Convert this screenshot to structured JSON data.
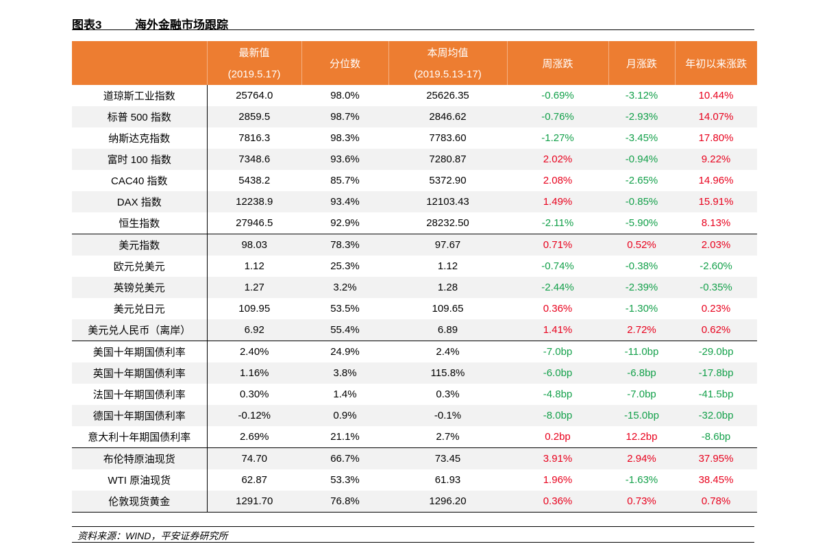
{
  "header": {
    "label": "图表3",
    "title": "海外金融市场跟踪"
  },
  "table": {
    "columns": [
      [
        ""
      ],
      [
        "最新值",
        "(2019.5.17)"
      ],
      [
        "分位数"
      ],
      [
        "本周均值",
        "(2019.5.13-17)"
      ],
      [
        "周涨跌"
      ],
      [
        "月涨跌"
      ],
      [
        "年初以来涨跌"
      ]
    ],
    "colored_from": 4,
    "up_color": "#e8001c",
    "down_color": "#13a04a",
    "header_color": "#ed7d31",
    "groups": [
      [
        [
          "道琼斯工业指数",
          "25764.0",
          "98.0%",
          "25626.35",
          "-0.69%",
          "-3.12%",
          "10.44%"
        ],
        [
          "标普 500 指数",
          "2859.5",
          "98.7%",
          "2846.62",
          "-0.76%",
          "-2.93%",
          "14.07%"
        ],
        [
          "纳斯达克指数",
          "7816.3",
          "98.3%",
          "7783.60",
          "-1.27%",
          "-3.45%",
          "17.80%"
        ],
        [
          "富时 100 指数",
          "7348.6",
          "93.6%",
          "7280.87",
          "2.02%",
          "-0.94%",
          "9.22%"
        ],
        [
          "CAC40 指数",
          "5438.2",
          "85.7%",
          "5372.90",
          "2.08%",
          "-2.65%",
          "14.96%"
        ],
        [
          "DAX 指数",
          "12238.9",
          "93.4%",
          "12103.43",
          "1.49%",
          "-0.85%",
          "15.91%"
        ],
        [
          "恒生指数",
          "27946.5",
          "92.9%",
          "28232.50",
          "-2.11%",
          "-5.90%",
          "8.13%"
        ]
      ],
      [
        [
          "美元指数",
          "98.03",
          "78.3%",
          "97.67",
          "0.71%",
          "0.52%",
          "2.03%"
        ],
        [
          "欧元兑美元",
          "1.12",
          "25.3%",
          "1.12",
          "-0.74%",
          "-0.38%",
          "-2.60%"
        ],
        [
          "英镑兑美元",
          "1.27",
          "3.2%",
          "1.28",
          "-2.44%",
          "-2.39%",
          "-0.35%"
        ],
        [
          "美元兑日元",
          "109.95",
          "53.5%",
          "109.65",
          "0.36%",
          "-1.30%",
          "0.23%"
        ],
        [
          "美元兑人民币（离岸）",
          "6.92",
          "55.4%",
          "6.89",
          "1.41%",
          "2.72%",
          "0.62%"
        ]
      ],
      [
        [
          "美国十年期国债利率",
          "2.40%",
          "24.9%",
          "2.4%",
          "-7.0bp",
          "-11.0bp",
          "-29.0bp"
        ],
        [
          "英国十年期国债利率",
          "1.16%",
          "3.8%",
          "115.8%",
          "-6.0bp",
          "-6.8bp",
          "-17.8bp"
        ],
        [
          "法国十年期国债利率",
          "0.30%",
          "1.4%",
          "0.3%",
          "-4.8bp",
          "-7.0bp",
          "-41.5bp"
        ],
        [
          "德国十年期国债利率",
          "-0.12%",
          "0.9%",
          "-0.1%",
          "-8.0bp",
          "-15.0bp",
          "-32.0bp"
        ],
        [
          "意大利十年期国债利率",
          "2.69%",
          "21.1%",
          "2.7%",
          "0.2bp",
          "12.2bp",
          "-8.6bp"
        ]
      ],
      [
        [
          "布伦特原油现货",
          "74.70",
          "66.7%",
          "73.45",
          "3.91%",
          "2.94%",
          "37.95%"
        ],
        [
          "WTI 原油现货",
          "62.87",
          "53.3%",
          "61.93",
          "1.96%",
          "-1.63%",
          "38.45%"
        ],
        [
          "伦敦现货黄金",
          "1291.70",
          "76.8%",
          "1296.20",
          "0.36%",
          "0.73%",
          "0.78%"
        ]
      ]
    ]
  },
  "footer": {
    "source": "资料来源：WIND，平安证券研究所"
  }
}
